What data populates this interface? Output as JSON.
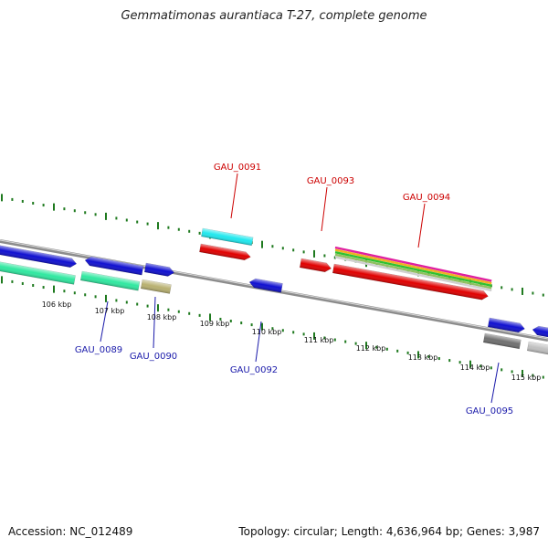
{
  "title": "Gemmatimonas aurantiaca T-27, complete genome",
  "footer": {
    "accession": "Accession: NC_012489",
    "topology": "Topology: circular; Length: 4,636,964 bp; Genes: 3,987"
  },
  "colors": {
    "backbone": "#8c8c8c",
    "tick": "#1f7a1f",
    "red": "#e00000",
    "blue": "#1010d0",
    "cyan": "#20e8ee",
    "seagreen": "#30e8a0",
    "khaki": "#b8b070",
    "gray": "#707070",
    "lightgray": "#c0c0c0",
    "label_red": "#cc0000",
    "label_blue": "#1a1aaa"
  },
  "kbp_labels": [
    "106 kbp",
    "107 kbp",
    "108 kbp",
    "109 kbp",
    "110 kbp",
    "111 kbp",
    "112 kbp",
    "113 kbp",
    "114 kbp",
    "115 kbp"
  ],
  "gene_labels": [
    {
      "text": "GAU_0091",
      "color": "red"
    },
    {
      "text": "GAU_0093",
      "color": "red"
    },
    {
      "text": "GAU_0094",
      "color": "red"
    },
    {
      "text": "GAU_0089",
      "color": "blue"
    },
    {
      "text": "GAU_0090",
      "color": "blue"
    },
    {
      "text": "GAU_0092",
      "color": "blue"
    },
    {
      "text": "GAU_0095",
      "color": "blue"
    }
  ]
}
